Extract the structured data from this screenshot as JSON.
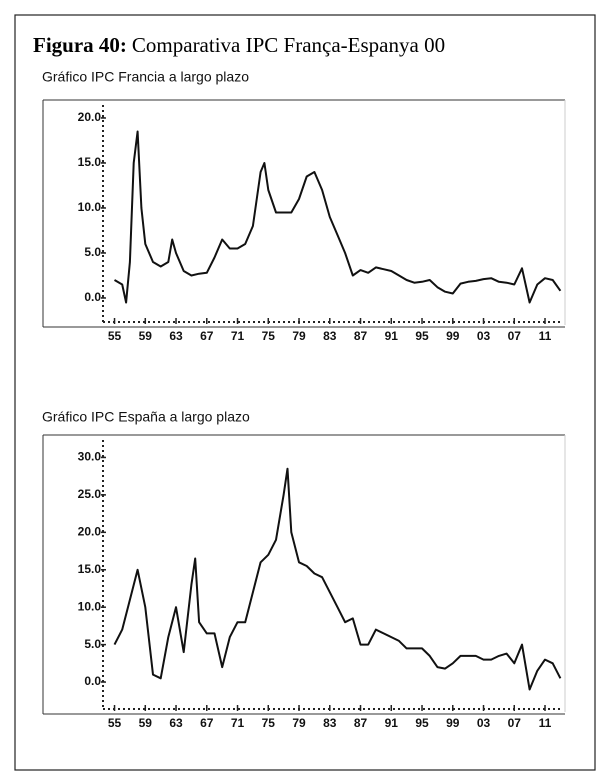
{
  "figure_label": "Figura 40:",
  "figure_title": "Comparativa IPC França-Espanya 00",
  "chart_data": [
    {
      "type": "line",
      "title": "Gráfico IPC Francia a largo plazo",
      "color": "#111111",
      "x": [
        1955,
        1956,
        1956.5,
        1957,
        1957.5,
        1958,
        1958.5,
        1959,
        1960,
        1961,
        1962,
        1962.5,
        1963,
        1964,
        1965,
        1966,
        1967,
        1968,
        1969,
        1970,
        1971,
        1972,
        1973,
        1974,
        1974.5,
        1975,
        1976,
        1977,
        1978,
        1979,
        1980,
        1981,
        1982,
        1983,
        1984,
        1985,
        1986,
        1987,
        1988,
        1989,
        1990,
        1991,
        1992,
        1993,
        1994,
        1995,
        1996,
        1997,
        1998,
        1999,
        2000,
        2001,
        2002,
        2003,
        2004,
        2005,
        2006,
        2007,
        2008,
        2009,
        2010,
        2011,
        2012,
        2013
      ],
      "series": [
        {
          "name": "IPC Francia",
          "color": "#111111",
          "values": [
            2,
            1.5,
            -0.5,
            4,
            15,
            18.5,
            10,
            6,
            4,
            3.5,
            4,
            6.5,
            5,
            3,
            2.5,
            2.7,
            2.8,
            4.5,
            6.5,
            5.5,
            5.5,
            6,
            8,
            14,
            15,
            12,
            9.5,
            9.5,
            9.5,
            11,
            13.5,
            14,
            12,
            9,
            7,
            5,
            2.5,
            3.1,
            2.8,
            3.4,
            3.2,
            3,
            2.5,
            2,
            1.7,
            1.8,
            2,
            1.2,
            0.7,
            0.5,
            1.6,
            1.8,
            1.9,
            2.1,
            2.2,
            1.8,
            1.7,
            1.5,
            3.3,
            -0.5,
            1.5,
            2.2,
            2,
            0.8
          ]
        }
      ],
      "xlim": [
        1953.5,
        2013.6
      ],
      "xticks": [
        {
          "value": 1955,
          "label": "55"
        },
        {
          "value": 1959,
          "label": "59"
        },
        {
          "value": 1963,
          "label": "63"
        },
        {
          "value": 1967,
          "label": "67"
        },
        {
          "value": 1971,
          "label": "71"
        },
        {
          "value": 1975,
          "label": "75"
        },
        {
          "value": 1979,
          "label": "79"
        },
        {
          "value": 1983,
          "label": "83"
        },
        {
          "value": 1987,
          "label": "87"
        },
        {
          "value": 1991,
          "label": "91"
        },
        {
          "value": 1995,
          "label": "95"
        },
        {
          "value": 1999,
          "label": "99"
        },
        {
          "value": 2003,
          "label": "03"
        },
        {
          "value": 2007,
          "label": "07"
        },
        {
          "value": 2011,
          "label": "11"
        }
      ],
      "ylim": [
        -3,
        22
      ],
      "yticks": [
        {
          "value": 0,
          "label": "0.0-"
        },
        {
          "value": 5,
          "label": "5.0-"
        },
        {
          "value": 10,
          "label": "10.0-"
        },
        {
          "value": 15,
          "label": "15.0-"
        },
        {
          "value": 20,
          "label": "20.0-"
        }
      ]
    },
    {
      "type": "line",
      "title": "Gráfico IPC España a largo plazo",
      "color": "#111111",
      "x": [
        1955,
        1956,
        1957,
        1958,
        1959,
        1960,
        1961,
        1962,
        1963,
        1964,
        1965,
        1965.5,
        1966,
        1967,
        1968,
        1969,
        1970,
        1971,
        1972,
        1973,
        1974,
        1975,
        1976,
        1977,
        1977.5,
        1978,
        1979,
        1980,
        1981,
        1982,
        1983,
        1984,
        1985,
        1986,
        1987,
        1988,
        1989,
        1990,
        1991,
        1992,
        1993,
        1994,
        1995,
        1996,
        1997,
        1998,
        1999,
        2000,
        2001,
        2002,
        2003,
        2004,
        2005,
        2006,
        2007,
        2008,
        2009,
        2010,
        2011,
        2012,
        2013
      ],
      "series": [
        {
          "name": "IPC España",
          "color": "#111111",
          "values": [
            5,
            7,
            11,
            15,
            10,
            1,
            0.5,
            6,
            10,
            4,
            13,
            16.5,
            8,
            6.5,
            6.5,
            2,
            6,
            8,
            8,
            12,
            16,
            17,
            19,
            25,
            28.5,
            20,
            16,
            15.5,
            14.5,
            14,
            12,
            10,
            8,
            8.5,
            5,
            5,
            7,
            6.5,
            6,
            5.5,
            4.5,
            4.5,
            4.5,
            3.5,
            2,
            1.8,
            2.5,
            3.5,
            3.5,
            3.5,
            3,
            3,
            3.5,
            3.8,
            2.5,
            5,
            -1,
            1.5,
            3,
            2.5,
            0.5
          ]
        }
      ],
      "xlim": [
        1953.5,
        2013.6
      ],
      "xticks": [
        {
          "value": 1955,
          "label": "55"
        },
        {
          "value": 1959,
          "label": "59"
        },
        {
          "value": 1963,
          "label": "63"
        },
        {
          "value": 1967,
          "label": "67"
        },
        {
          "value": 1971,
          "label": "71"
        },
        {
          "value": 1975,
          "label": "75"
        },
        {
          "value": 1979,
          "label": "79"
        },
        {
          "value": 1983,
          "label": "83"
        },
        {
          "value": 1987,
          "label": "87"
        },
        {
          "value": 1991,
          "label": "91"
        },
        {
          "value": 1995,
          "label": "95"
        },
        {
          "value": 1999,
          "label": "99"
        },
        {
          "value": 2003,
          "label": "03"
        },
        {
          "value": 2007,
          "label": "07"
        },
        {
          "value": 2011,
          "label": "11"
        }
      ],
      "ylim": [
        -4,
        33
      ],
      "yticks": [
        {
          "value": 0,
          "label": "0.0-"
        },
        {
          "value": 5,
          "label": "5.0-"
        },
        {
          "value": 10,
          "label": "10.0-"
        },
        {
          "value": 15,
          "label": "15.0-"
        },
        {
          "value": 20,
          "label": "20.0-"
        },
        {
          "value": 25,
          "label": "25.0-"
        },
        {
          "value": 30,
          "label": "30.0-"
        }
      ]
    }
  ]
}
